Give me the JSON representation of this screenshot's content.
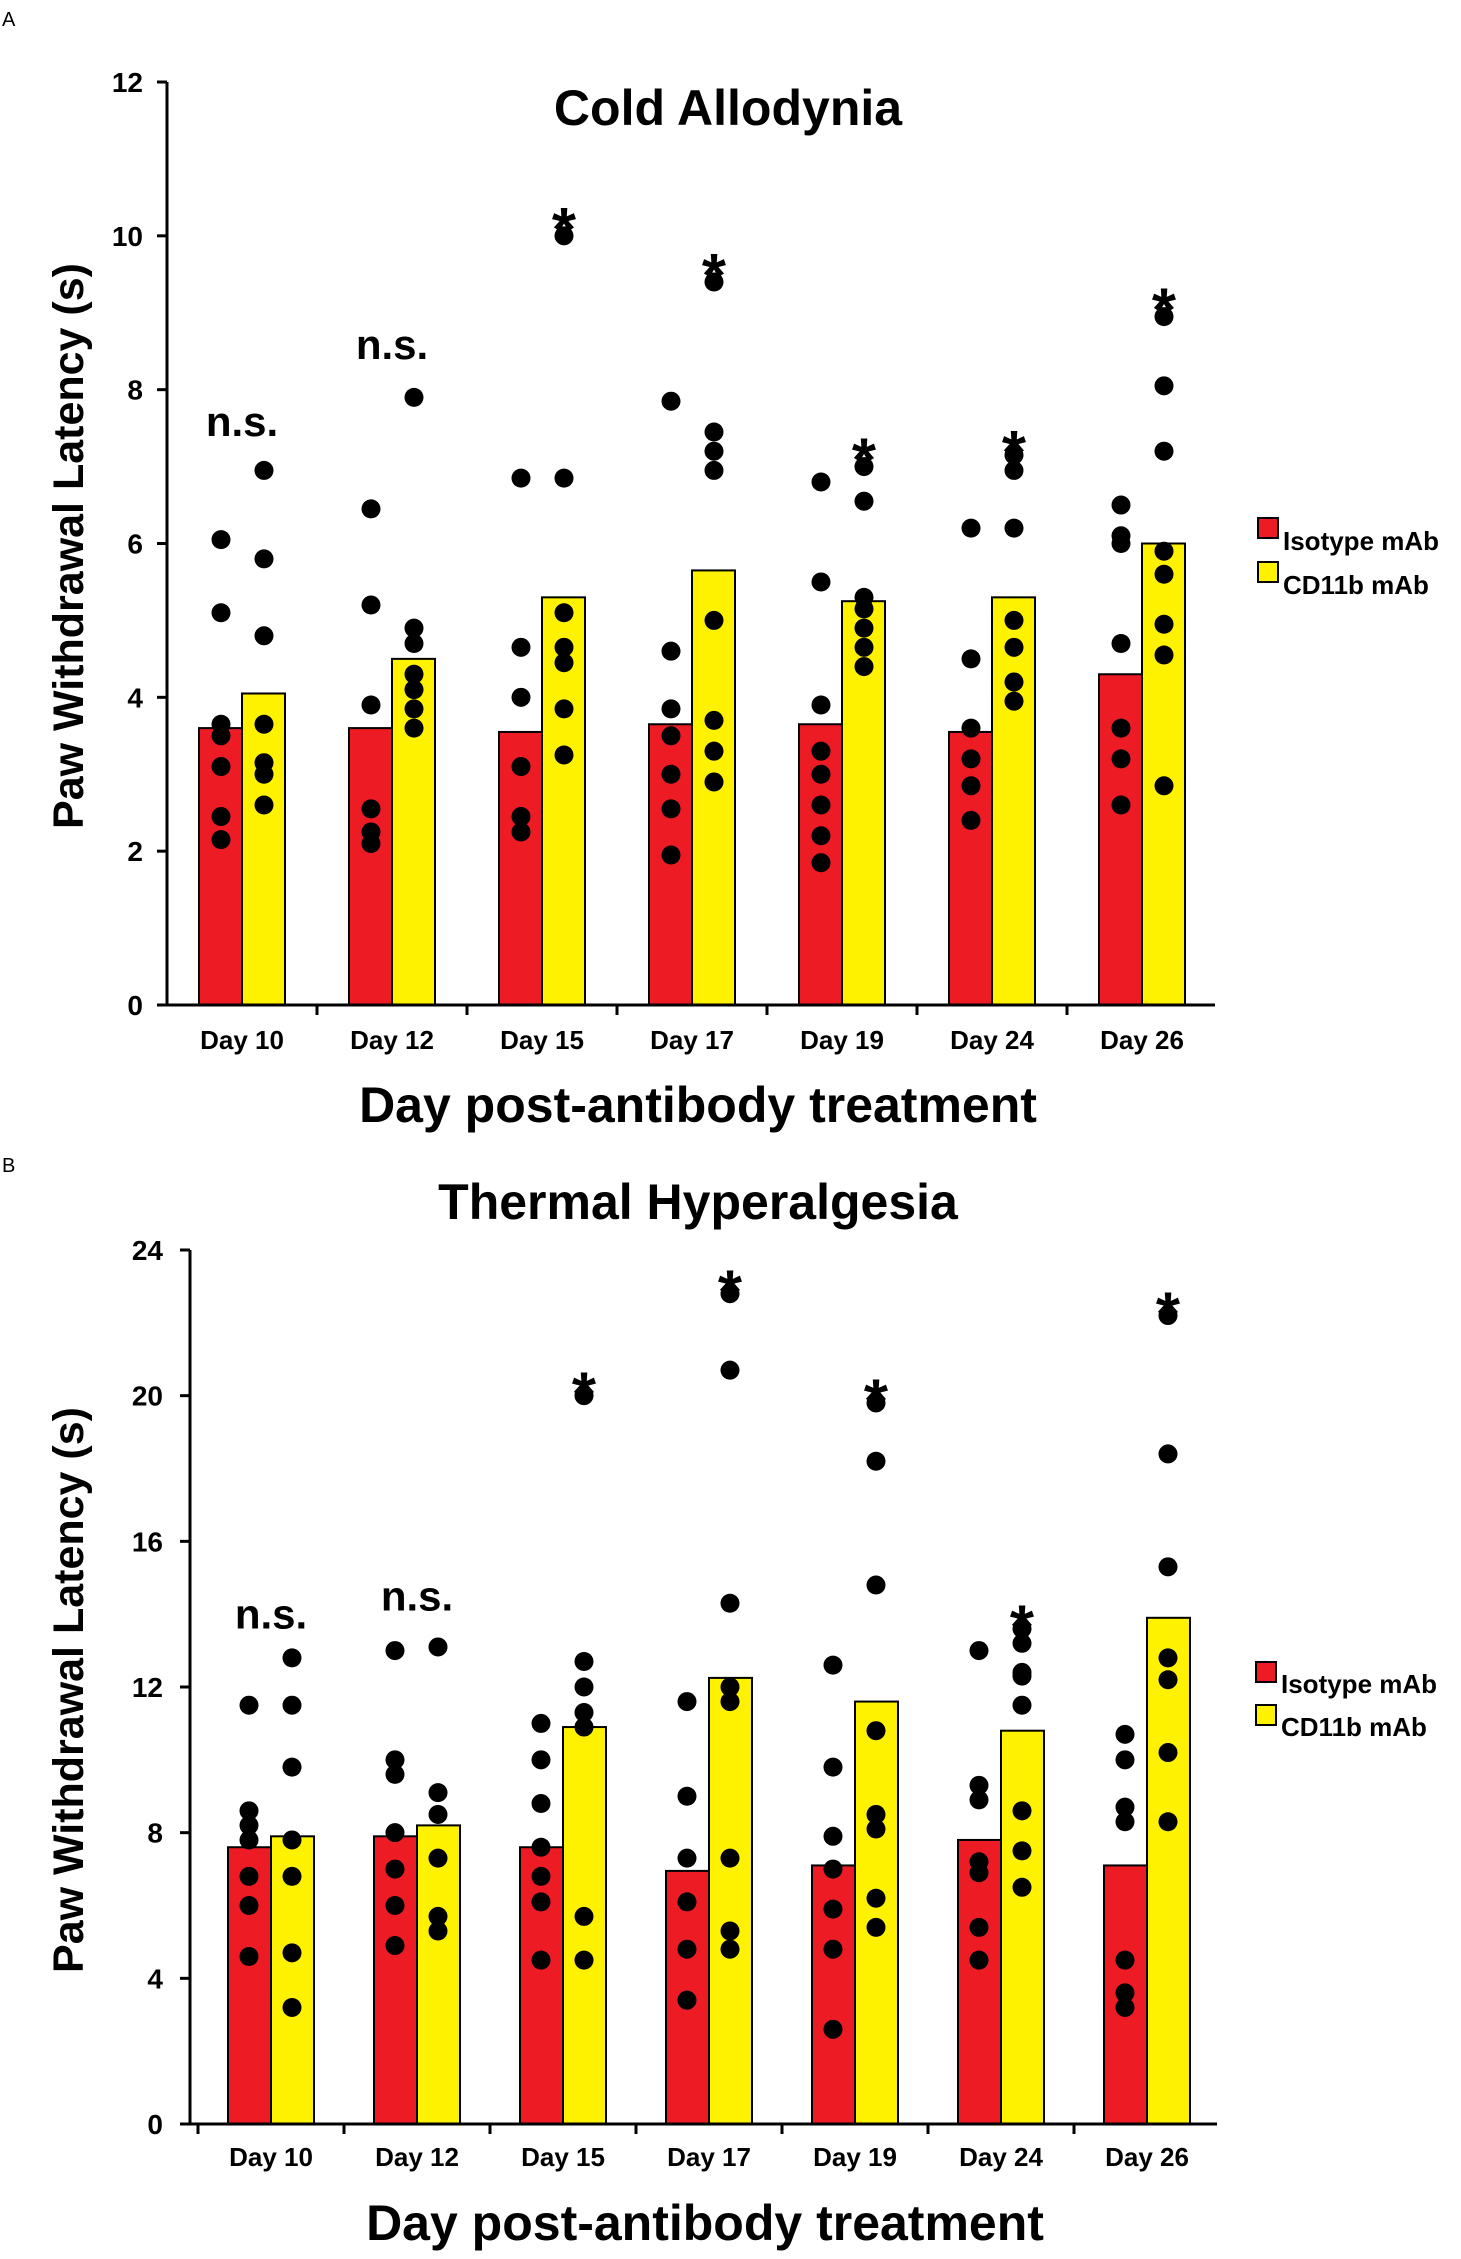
{
  "chart_data": [
    {
      "panel": "A",
      "type": "bar",
      "title": "Cold Allodynia",
      "xlabel": "Day post-antibody treatment",
      "ylabel": "Paw Withdrawal Latency (s)",
      "ylim": [
        0,
        12
      ],
      "yticks": [
        0,
        2,
        4,
        6,
        8,
        10,
        12
      ],
      "categories": [
        "Day 10",
        "Day 12",
        "Day 15",
        "Day 17",
        "Day 19",
        "Day 24",
        "Day 26"
      ],
      "series": [
        {
          "name": "Isotype mAb",
          "color": "#ed1c24",
          "values": [
            3.6,
            3.6,
            3.55,
            3.65,
            3.65,
            3.55,
            4.3
          ],
          "points": [
            [
              6.05,
              5.1,
              3.65,
              3.5,
              3.1,
              2.45,
              2.15
            ],
            [
              6.45,
              5.2,
              3.9,
              2.55,
              2.25,
              2.1
            ],
            [
              6.85,
              4.65,
              4.0,
              3.1,
              2.45,
              2.25
            ],
            [
              7.85,
              4.6,
              3.85,
              3.5,
              3.0,
              2.55,
              1.95
            ],
            [
              6.8,
              5.5,
              3.9,
              3.3,
              3.0,
              2.6,
              2.2,
              1.85
            ],
            [
              6.2,
              4.5,
              3.6,
              3.2,
              2.85,
              2.4
            ],
            [
              6.5,
              6.1,
              6.0,
              4.7,
              3.6,
              3.2,
              2.6
            ]
          ]
        },
        {
          "name": "CD11b mAb",
          "color": "#fff200",
          "values": [
            4.05,
            4.5,
            5.3,
            5.65,
            5.25,
            5.3,
            6.0
          ],
          "points": [
            [
              6.95,
              5.8,
              4.8,
              3.65,
              3.15,
              3.0,
              2.6
            ],
            [
              7.9,
              4.9,
              4.7,
              4.3,
              4.1,
              3.85,
              3.6
            ],
            [
              10.0,
              6.85,
              5.1,
              4.65,
              4.45,
              3.85,
              3.25
            ],
            [
              9.4,
              7.45,
              7.2,
              6.95,
              5.0,
              3.7,
              3.3,
              2.9
            ],
            [
              7.0,
              6.55,
              5.3,
              5.15,
              4.9,
              4.65,
              4.4
            ],
            [
              7.15,
              6.95,
              6.2,
              5.0,
              4.65,
              4.2,
              3.95
            ],
            [
              8.95,
              8.05,
              7.2,
              5.9,
              5.6,
              4.95,
              4.55,
              2.85
            ]
          ]
        }
      ],
      "annotations": [
        {
          "category": "Day 10",
          "text": "n.s.",
          "at": 7.4
        },
        {
          "category": "Day 12",
          "text": "n.s.",
          "at": 8.4
        },
        {
          "category": "Day 15",
          "text": "*",
          "at": 10.3
        },
        {
          "category": "Day 17",
          "text": "*",
          "at": 9.7
        },
        {
          "category": "Day 19",
          "text": "*",
          "at": 7.3
        },
        {
          "category": "Day 24",
          "text": "*",
          "at": 7.4
        },
        {
          "category": "Day 26",
          "text": "*",
          "at": 9.25
        }
      ],
      "legend": [
        "Isotype mAb",
        "CD11b mAb"
      ],
      "legend_position": "right"
    },
    {
      "panel": "B",
      "type": "bar",
      "title": "Thermal Hyperalgesia",
      "xlabel": "Day post-antibody treatment",
      "ylabel": "Paw Withdrawal Latency (s)",
      "ylim": [
        0,
        24
      ],
      "yticks": [
        0,
        4,
        8,
        12,
        16,
        20,
        24
      ],
      "categories": [
        "Day 10",
        "Day 12",
        "Day 15",
        "Day 17",
        "Day 19",
        "Day 24",
        "Day 26"
      ],
      "series": [
        {
          "name": "Isotype mAb",
          "color": "#ed1c24",
          "values": [
            7.6,
            7.9,
            7.6,
            6.95,
            7.1,
            7.8,
            7.1
          ],
          "points": [
            [
              11.5,
              8.6,
              8.2,
              7.8,
              6.8,
              6.0,
              4.6
            ],
            [
              13.0,
              10.0,
              9.6,
              8.0,
              7.0,
              6.0,
              4.9
            ],
            [
              11.0,
              10.0,
              8.8,
              7.6,
              6.8,
              6.1,
              4.5
            ],
            [
              11.6,
              9.0,
              7.3,
              6.1,
              4.8,
              3.4
            ],
            [
              12.6,
              9.8,
              7.9,
              7.0,
              5.9,
              4.8,
              2.6
            ],
            [
              13.0,
              9.3,
              8.9,
              7.2,
              6.9,
              5.4,
              4.5
            ],
            [
              10.7,
              10.0,
              8.7,
              8.3,
              4.5,
              3.6,
              3.2
            ]
          ]
        },
        {
          "name": "CD11b mAb",
          "color": "#fff200",
          "values": [
            7.9,
            8.2,
            10.9,
            12.25,
            11.6,
            10.8,
            13.9
          ],
          "points": [
            [
              12.8,
              11.5,
              9.8,
              7.8,
              6.8,
              4.7,
              3.2
            ],
            [
              13.1,
              9.1,
              8.5,
              7.3,
              5.7,
              5.3
            ],
            [
              20.0,
              12.7,
              12.0,
              11.3,
              10.9,
              5.7,
              4.5
            ],
            [
              22.8,
              20.7,
              14.3,
              12.0,
              11.6,
              7.3,
              5.3,
              4.8
            ],
            [
              19.8,
              18.2,
              14.8,
              10.8,
              8.5,
              8.1,
              6.2,
              5.4
            ],
            [
              13.6,
              13.2,
              12.4,
              12.3,
              11.5,
              8.6,
              7.5,
              6.5
            ],
            [
              22.2,
              18.4,
              15.3,
              12.8,
              12.2,
              10.2,
              8.3
            ]
          ]
        }
      ],
      "annotations": [
        {
          "category": "Day 10",
          "text": "n.s.",
          "at": 13.6
        },
        {
          "category": "Day 12",
          "text": "n.s.",
          "at": 14.1
        },
        {
          "category": "Day 15",
          "text": "*",
          "at": 20.5
        },
        {
          "category": "Day 17",
          "text": "*",
          "at": 23.3
        },
        {
          "category": "Day 19",
          "text": "*",
          "at": 20.3
        },
        {
          "category": "Day 24",
          "text": "*",
          "at": 14.1
        },
        {
          "category": "Day 26",
          "text": "*",
          "at": 22.7
        }
      ],
      "legend": [
        "Isotype mAb",
        "CD11b mAb"
      ],
      "legend_position": "right"
    }
  ]
}
